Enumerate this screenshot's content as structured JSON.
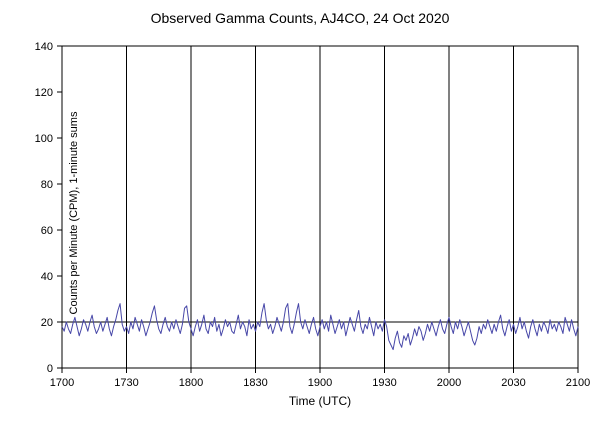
{
  "title": "Observed Gamma Counts, AJ4CO, 24 Oct 2020",
  "chart_data": {
    "type": "line",
    "title": "Observed Gamma Counts, AJ4CO, 24 Oct 2020",
    "xlabel": "Time (UTC)",
    "ylabel": "Counts per Minute (CPM), 1-minute sums",
    "x_tick_labels": [
      "1700",
      "1730",
      "1800",
      "1830",
      "1900",
      "1930",
      "2000",
      "2030",
      "2100"
    ],
    "x_tick_interval_minutes": 30,
    "x_total_minutes": 240,
    "ylim": [
      0,
      140
    ],
    "y_ticks": [
      0,
      20,
      40,
      60,
      80,
      100,
      120,
      140
    ],
    "reference_line_y": 20,
    "grid": "vertical-majors",
    "legend": "none",
    "line_color": "#4747a8",
    "grid_color": "#000000",
    "series": [
      {
        "name": "Observed gamma counts",
        "sample_interval_minutes": 1,
        "values": [
          18,
          16,
          20,
          17,
          15,
          19,
          22,
          18,
          14,
          17,
          21,
          19,
          16,
          20,
          23,
          18,
          15,
          17,
          20,
          16,
          19,
          22,
          17,
          14,
          18,
          21,
          25,
          28,
          19,
          16,
          18,
          15,
          20,
          17,
          22,
          19,
          16,
          21,
          18,
          14,
          17,
          20,
          24,
          27,
          21,
          17,
          15,
          19,
          22,
          18,
          16,
          20,
          17,
          21,
          18,
          15,
          19,
          26,
          27,
          20,
          17,
          14,
          18,
          21,
          16,
          19,
          23,
          17,
          15,
          20,
          18,
          22,
          16,
          19,
          14,
          17,
          21,
          18,
          20,
          16,
          15,
          19,
          23,
          17,
          20,
          18,
          14,
          21,
          17,
          19,
          16,
          20,
          18,
          24,
          28,
          21,
          17,
          19,
          15,
          18,
          22,
          19,
          16,
          20,
          26,
          28,
          18,
          15,
          19,
          24,
          28,
          20,
          17,
          21,
          18,
          15,
          19,
          22,
          17,
          14,
          18,
          21,
          17,
          20,
          16,
          23,
          19,
          15,
          18,
          21,
          17,
          20,
          14,
          18,
          22,
          19,
          16,
          21,
          25,
          18,
          15,
          19,
          17,
          22,
          18,
          14,
          20,
          17,
          19,
          16,
          21,
          18,
          12,
          10,
          8,
          13,
          16,
          11,
          9,
          14,
          12,
          15,
          10,
          13,
          17,
          14,
          18,
          16,
          12,
          15,
          19,
          16,
          20,
          17,
          14,
          18,
          21,
          17,
          15,
          19,
          22,
          18,
          15,
          20,
          17,
          21,
          18,
          14,
          17,
          20,
          16,
          12,
          10,
          13,
          18,
          15,
          19,
          17,
          21,
          18,
          15,
          19,
          16,
          20,
          23,
          17,
          14,
          18,
          21,
          16,
          19,
          15,
          18,
          22,
          17,
          20,
          16,
          13,
          18,
          21,
          17,
          14,
          19,
          16,
          20,
          18,
          15,
          21,
          17,
          19,
          16,
          20,
          18,
          15,
          22,
          19,
          16,
          21,
          17,
          14,
          18
        ]
      }
    ]
  }
}
